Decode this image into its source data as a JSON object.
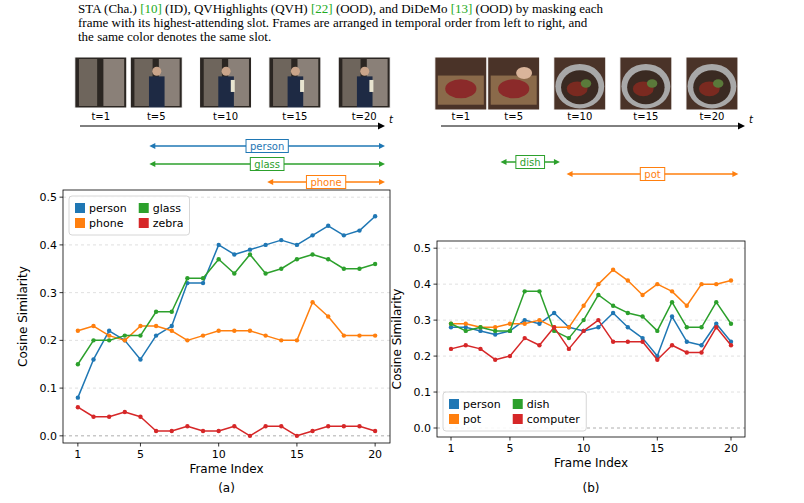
{
  "caption": {
    "lines": [
      "STA (Cha.) [10] (ID), QVHighlights (QVH) [22] (OOD), and DiDeMo [13] (OOD) by masking each",
      "frame with its highest-attending slot. Frames are arranged in temporal order from left to right, and",
      "the same color denotes the same slot."
    ]
  },
  "panels": [
    {
      "label": "(a)",
      "timeline": {
        "label": "t",
        "xlim": [
          -0.5,
          21.5
        ],
        "ticks": [
          {
            "value": 1,
            "label": "t=1"
          },
          {
            "value": 5,
            "label": "t=5"
          },
          {
            "value": 10,
            "label": "t=10"
          },
          {
            "value": 15,
            "label": "t=15"
          },
          {
            "value": 20,
            "label": "t=20"
          }
        ],
        "spans": [
          {
            "name": "person",
            "color": "#1f77b4",
            "start": 4.5,
            "end": 21.5
          },
          {
            "name": "glass",
            "color": "#2ca02c",
            "start": 4.5,
            "end": 21.5
          },
          {
            "name": "phone",
            "color": "#ff7f0e",
            "start": 13,
            "end": 21.5
          }
        ]
      }
    },
    {
      "label": "(b)",
      "timeline": {
        "label": "t",
        "xlim": [
          -0.5,
          22.5
        ],
        "ticks": [
          {
            "value": 1,
            "label": "t=1"
          },
          {
            "value": 5,
            "label": "t=5"
          },
          {
            "value": 10,
            "label": "t=10"
          },
          {
            "value": 15,
            "label": "t=15"
          },
          {
            "value": 20,
            "label": "t=20"
          }
        ],
        "spans": [
          {
            "name": "dish",
            "color": "#2ca02c",
            "start": 4,
            "end": 8.5
          },
          {
            "name": "pot",
            "color": "#ff7f0e",
            "start": 9,
            "end": 22
          }
        ]
      }
    }
  ],
  "chart_data": [
    {
      "type": "line",
      "x_label": "Frame Index",
      "y_label": "Cosine Similarity",
      "x": [
        1,
        2,
        3,
        4,
        5,
        6,
        7,
        8,
        9,
        10,
        11,
        12,
        13,
        14,
        15,
        16,
        17,
        18,
        19,
        20
      ],
      "xlim": [
        0.05,
        20.95
      ],
      "xticks": [
        1,
        5,
        10,
        15,
        20
      ],
      "ylim": [
        -0.015,
        0.515
      ],
      "yticks": [
        {
          "value": 0,
          "label": "0.0"
        },
        0.1,
        0.2,
        0.3,
        0.4,
        0.5
      ],
      "grid": true,
      "legend": "upper left",
      "marker": "o",
      "series": [
        {
          "name": "person",
          "color": "#1f77b4",
          "values": [
            0.08,
            0.16,
            0.22,
            0.2,
            0.16,
            0.21,
            0.23,
            0.32,
            0.32,
            0.4,
            0.38,
            0.39,
            0.4,
            0.41,
            0.4,
            0.42,
            0.44,
            0.42,
            0.43,
            0.46
          ]
        },
        {
          "name": "phone",
          "color": "#ff7f0e",
          "values": [
            0.22,
            0.23,
            0.21,
            0.2,
            0.23,
            0.23,
            0.22,
            0.2,
            0.21,
            0.22,
            0.22,
            0.22,
            0.21,
            0.2,
            0.2,
            0.28,
            0.25,
            0.21,
            0.21,
            0.21
          ]
        },
        {
          "name": "glass",
          "color": "#2ca02c",
          "values": [
            0.15,
            0.2,
            0.2,
            0.21,
            0.21,
            0.26,
            0.26,
            0.33,
            0.33,
            0.37,
            0.34,
            0.38,
            0.34,
            0.35,
            0.37,
            0.38,
            0.37,
            0.35,
            0.35,
            0.36
          ]
        },
        {
          "name": "zebra",
          "color": "#d62728",
          "values": [
            0.06,
            0.04,
            0.04,
            0.05,
            0.04,
            0.01,
            0.01,
            0.02,
            0.01,
            0.01,
            0.02,
            0.0,
            0.02,
            0.02,
            0.0,
            0.01,
            0.02,
            0.02,
            0.02,
            0.01
          ]
        }
      ]
    },
    {
      "type": "line",
      "x_label": "Frame Index",
      "y_label": "Cosine Similarity",
      "x": [
        1,
        2,
        3,
        4,
        5,
        6,
        7,
        8,
        9,
        10,
        11,
        12,
        13,
        14,
        15,
        16,
        17,
        18,
        19,
        20
      ],
      "xlim": [
        0.05,
        20.95
      ],
      "xticks": [
        1,
        5,
        10,
        15,
        20
      ],
      "ylim": [
        -0.025,
        0.52
      ],
      "yticks": [
        {
          "value": 0,
          "label": "0.0"
        },
        0.1,
        0.2,
        0.3,
        0.4,
        0.5
      ],
      "grid": true,
      "legend": "lower left",
      "marker": "o",
      "series": [
        {
          "name": "person",
          "color": "#1f77b4",
          "values": [
            0.28,
            0.28,
            0.27,
            0.26,
            0.27,
            0.3,
            0.29,
            0.32,
            0.28,
            0.27,
            0.28,
            0.32,
            0.28,
            0.25,
            0.2,
            0.31,
            0.24,
            0.23,
            0.29,
            0.24
          ]
        },
        {
          "name": "pot",
          "color": "#ff7f0e",
          "values": [
            0.29,
            0.29,
            0.28,
            0.28,
            0.29,
            0.29,
            0.3,
            0.28,
            0.28,
            0.34,
            0.4,
            0.44,
            0.41,
            0.37,
            0.4,
            0.38,
            0.34,
            0.4,
            0.4,
            0.41
          ]
        },
        {
          "name": "dish",
          "color": "#2ca02c",
          "values": [
            0.29,
            0.27,
            0.28,
            0.27,
            0.27,
            0.38,
            0.38,
            0.27,
            0.25,
            0.3,
            0.37,
            0.34,
            0.32,
            0.31,
            0.27,
            0.35,
            0.28,
            0.28,
            0.35,
            0.29
          ]
        },
        {
          "name": "computer",
          "color": "#d62728",
          "values": [
            0.22,
            0.23,
            0.22,
            0.19,
            0.2,
            0.25,
            0.23,
            0.28,
            0.22,
            0.27,
            0.3,
            0.24,
            0.24,
            0.24,
            0.19,
            0.23,
            0.21,
            0.21,
            0.28,
            0.23
          ]
        }
      ]
    }
  ]
}
